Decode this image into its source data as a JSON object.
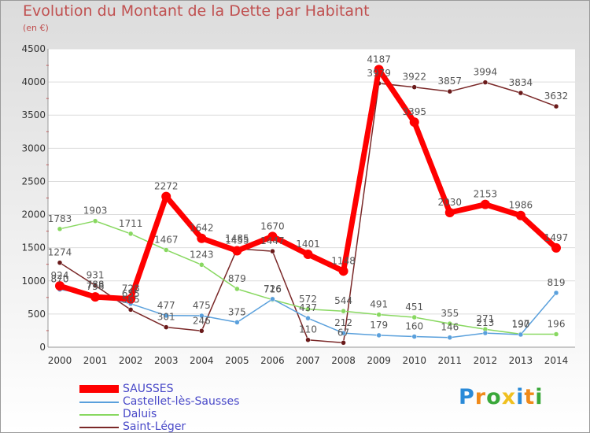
{
  "header": {
    "title": "Evolution du Montant de la Dette par Habitant",
    "subtitle": "(en €)"
  },
  "chart_data": {
    "type": "line",
    "title": "Evolution du Montant de la Dette par Habitant",
    "subtitle": "(en €)",
    "xlabel": "",
    "ylabel": "",
    "categories": [
      "2000",
      "2001",
      "2002",
      "2003",
      "2004",
      "2005",
      "2006",
      "2007",
      "2008",
      "2009",
      "2010",
      "2011",
      "2012",
      "2013",
      "2014"
    ],
    "ylim": [
      0,
      4500
    ],
    "yticks": [
      0,
      500,
      1000,
      1500,
      2000,
      2500,
      3000,
      3500,
      4000,
      4500
    ],
    "grid": "horizontal",
    "legend_position": "bottom-left",
    "series": [
      {
        "name": "SAUSSES",
        "color": "#ff0000",
        "values": [
          924,
          758,
          728,
          2272,
          1642,
          1455,
          1670,
          1401,
          1148,
          4187,
          3395,
          2030,
          2153,
          1986,
          1497
        ]
      },
      {
        "name": "Castellet-lès-Sausses",
        "color": "#5aa0dc",
        "values": [
          870,
          788,
          655,
          477,
          475,
          375,
          726,
          437,
          212,
          179,
          160,
          146,
          213,
          190,
          819
        ]
      },
      {
        "name": "Daluis",
        "color": "#88d860",
        "values": [
          1783,
          1903,
          1711,
          1467,
          1243,
          879,
          716,
          572,
          544,
          491,
          451,
          355,
          271,
          197,
          196
        ]
      },
      {
        "name": "Saint-Léger",
        "color": "#7a2828",
        "values": [
          1274,
          931,
          565,
          301,
          246,
          1485,
          1447,
          110,
          67,
          3979,
          3922,
          3857,
          3994,
          3834,
          3632
        ]
      }
    ]
  },
  "legend": {
    "items": [
      {
        "name": "SAUSSES"
      },
      {
        "name": "Castellet-lès-Sausses"
      },
      {
        "name": "Daluis"
      },
      {
        "name": "Saint-Léger"
      }
    ]
  },
  "logo": {
    "text": "Proxiti",
    "letter_colors": [
      "#2a8ad8",
      "#f08a1a",
      "#3aa83a",
      "#f0c020",
      "#2a8ad8",
      "#f08a1a",
      "#3aa83a"
    ]
  }
}
